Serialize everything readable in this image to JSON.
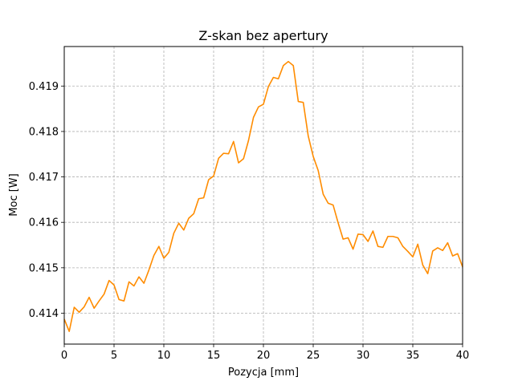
{
  "chart_data": {
    "type": "line",
    "title": "Z-skan bez apertury",
    "xlabel": "Pozycja [mm]",
    "ylabel": "Moc [W]",
    "xlim": [
      0,
      40
    ],
    "ylim": [
      0.41332,
      0.41987
    ],
    "xticks": [
      "0",
      "5",
      "10",
      "15",
      "20",
      "25",
      "30",
      "35",
      "40"
    ],
    "yticks": [
      "0.414",
      "0.415",
      "0.416",
      "0.417",
      "0.418",
      "0.419"
    ],
    "grid": true,
    "line_color": "#ff8c00",
    "series": [
      {
        "x": [
          0,
          0.5,
          1,
          1.5,
          2,
          2.5,
          3,
          3.5,
          4,
          4.5,
          5,
          5.5,
          6,
          6.5,
          7,
          7.5,
          8,
          8.5,
          9,
          9.5,
          10,
          10.5,
          11,
          11.5,
          12,
          12.5,
          13,
          13.5,
          14,
          14.5,
          15,
          15.5,
          16,
          16.5,
          17,
          17.5,
          18,
          18.5,
          19,
          19.5,
          20,
          20.5,
          21,
          21.5,
          22,
          22.5,
          23,
          23.5,
          24,
          24.5,
          25,
          25.5,
          26,
          26.5,
          27,
          27.5,
          28,
          28.5,
          29,
          29.5,
          30,
          30.5,
          31,
          31.5,
          32,
          32.5,
          33,
          33.5,
          34,
          34.5,
          35,
          35.5,
          36,
          36.5,
          37,
          37.5,
          38,
          38.5,
          39,
          39.5,
          40
        ],
        "y": [
          0.41387,
          0.4136,
          0.41413,
          0.41402,
          0.41414,
          0.41435,
          0.41411,
          0.41427,
          0.41442,
          0.41472,
          0.41462,
          0.4143,
          0.41427,
          0.41469,
          0.4146,
          0.4148,
          0.41466,
          0.41495,
          0.41527,
          0.41547,
          0.41521,
          0.41534,
          0.41576,
          0.41598,
          0.41583,
          0.41609,
          0.41619,
          0.41652,
          0.41654,
          0.41694,
          0.41702,
          0.41741,
          0.41752,
          0.41751,
          0.41778,
          0.41731,
          0.4174,
          0.4178,
          0.41831,
          0.41854,
          0.4186,
          0.41899,
          0.41919,
          0.41916,
          0.41945,
          0.41954,
          0.41945,
          0.41866,
          0.41864,
          0.4179,
          0.41745,
          0.41714,
          0.41662,
          0.41642,
          0.41638,
          0.41599,
          0.41563,
          0.41566,
          0.41541,
          0.41574,
          0.41573,
          0.41558,
          0.41581,
          0.41547,
          0.41545,
          0.41569,
          0.41569,
          0.41566,
          0.41547,
          0.41536,
          0.41524,
          0.41552,
          0.41506,
          0.41487,
          0.41537,
          0.41544,
          0.41538,
          0.41555,
          0.41526,
          0.41531,
          0.41502
        ]
      }
    ]
  }
}
